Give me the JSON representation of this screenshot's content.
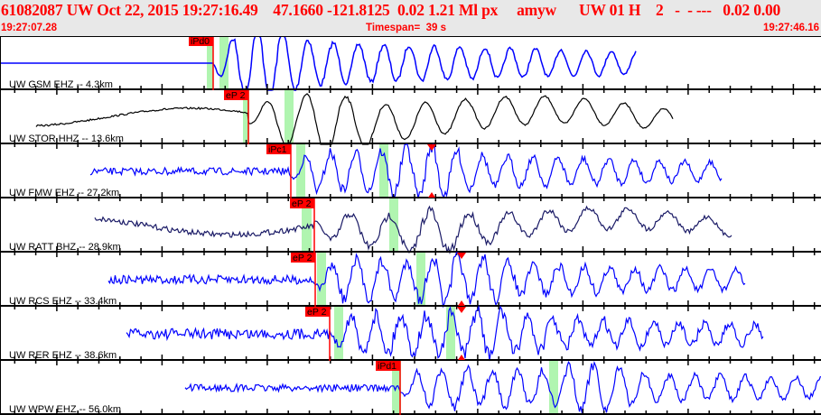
{
  "header": {
    "title": "61082087 UW Oct 22, 2015 19:27:16.49    47.1660 -121.8125  0.02 1.21 Ml px     amyw      UW 01 H    2   -  - ---   0.02 0.00",
    "start_time": "19:27:07.28",
    "timespan": "Timespan=  39 s",
    "end_time": "19:27:46.16"
  },
  "colors": {
    "header_text": "#ff0000",
    "header_bg": "#e8e8e8",
    "pick": "#ff0000",
    "window": "#b0f5b0"
  },
  "traces": [
    {
      "label": "UW GSM EHZ -- 4.3km",
      "pick": "iPd0",
      "color": "#0000ff"
    },
    {
      "label": "UW STOR HHZ -- 13.6km",
      "pick": "eP 2",
      "color": "#000000"
    },
    {
      "label": "UW FMW EHZ -- 27.2km",
      "pick": "iPc1",
      "color": "#0000ff"
    },
    {
      "label": "UW RATT BHZ -- 28.9km",
      "pick": "eP 2",
      "color": "#1a1a66"
    },
    {
      "label": "UW RCS EHZ -- 33.4km",
      "pick": "eP 2",
      "color": "#0000ff"
    },
    {
      "label": "UW RER EHZ -- 38.6km",
      "pick": "eP 2",
      "color": "#0000ff"
    },
    {
      "label": "UW WPW EHZ -- 56.0km",
      "pick": "iPd1",
      "color": "#0000ff"
    }
  ]
}
